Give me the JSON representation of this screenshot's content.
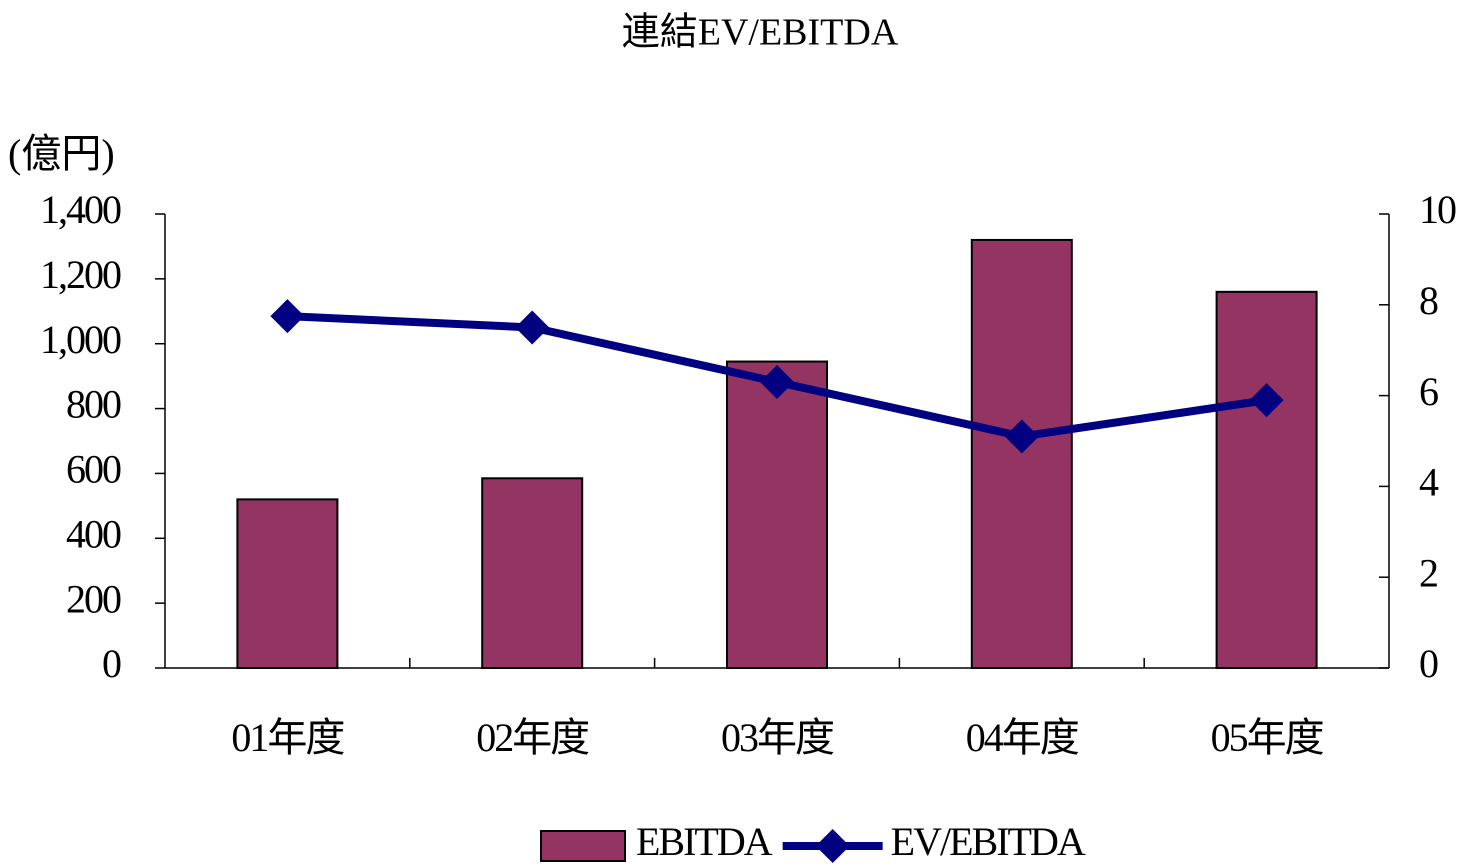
{
  "chart_data": {
    "type": "bar",
    "title": "連結EV/EBITDA",
    "y_label": "(億円)",
    "categories": [
      "01年度",
      "02年度",
      "03年度",
      "04年度",
      "05年度"
    ],
    "series": [
      {
        "name": "EBITDA",
        "type": "bar",
        "color": "#943462",
        "values": [
          520,
          585,
          945,
          1320,
          1160
        ]
      },
      {
        "name": "EV/EBITDA",
        "type": "line",
        "axis": "y2",
        "color": "#000080",
        "values": [
          7.75,
          7.5,
          6.3,
          5.1,
          5.9
        ]
      }
    ],
    "ylim": [
      0,
      1400
    ],
    "yticks": [
      0,
      200,
      400,
      600,
      800,
      {
        "value": 1000,
        "label": "1,000"
      },
      {
        "value": 1200,
        "label": "1,200"
      },
      {
        "value": 1400,
        "label": "1,400"
      }
    ],
    "y2lim": [
      0,
      10
    ],
    "y2ticks": [
      0,
      2,
      4,
      6,
      8,
      10
    ],
    "grid": false,
    "legend": "bottom"
  }
}
